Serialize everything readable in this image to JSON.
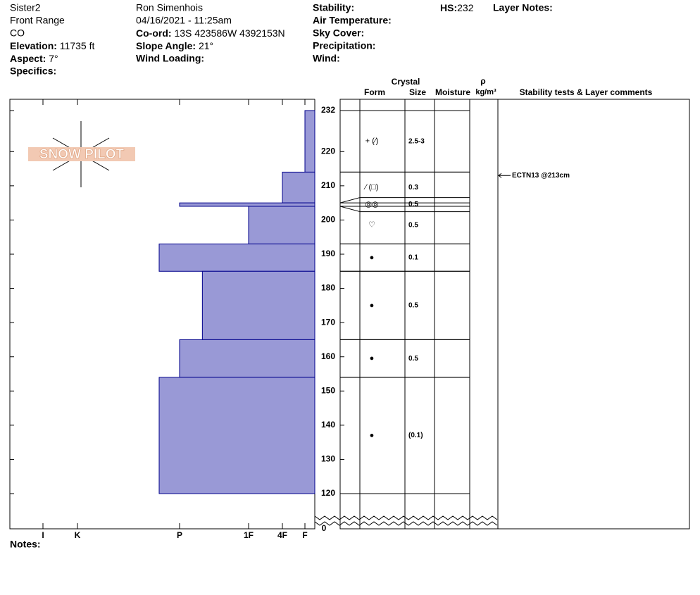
{
  "header": {
    "col1": [
      "Sister2",
      "Front Range",
      "CO"
    ],
    "elevation": {
      "label": "Elevation:",
      "value": "11735 ft"
    },
    "aspect": {
      "label": "Aspect:",
      "value": "7°"
    },
    "specifics": {
      "label": "Specifics:"
    },
    "observer": "Ron Simenhois",
    "date": "04/16/2021 - 11:25am",
    "coord": {
      "label": "Co-ord:",
      "value": "13S 423586W 4392153N"
    },
    "slope": {
      "label": "Slope Angle:",
      "value": "21°"
    },
    "wind_loading": {
      "label": "Wind Loading:"
    },
    "col3": [
      "Stability:",
      "Air Temperature:",
      "Sky Cover:",
      "Precipitation:",
      "Wind:"
    ],
    "hs": {
      "label": "HS:",
      "value": "232"
    },
    "layer_notes": "Layer Notes:"
  },
  "logo": "SNOW PILOT",
  "columns": {
    "crystal": "Crystal",
    "form": "Form",
    "size": "Size",
    "moisture": "Moisture",
    "rho": "ρ",
    "density_unit": "kg/m³",
    "comments": "Stability tests & Layer comments"
  },
  "notes": "Notes:",
  "chart_data": {
    "type": "snow-profile",
    "ylim": [
      120,
      232
    ],
    "yticks": [
      120,
      130,
      140,
      150,
      160,
      170,
      180,
      190,
      200,
      210,
      220,
      232
    ],
    "ybreak": 0,
    "xticks": [
      {
        "value": 1,
        "label": "F"
      },
      {
        "value": 2,
        "label": "4F"
      },
      {
        "value": 3,
        "label": "1F"
      },
      {
        "value": 4,
        "label": "P"
      },
      {
        "value": 5,
        "label": "K"
      },
      {
        "value": 6,
        "label": "I"
      }
    ],
    "color": "#9999d6",
    "layers": [
      {
        "top": 232,
        "bottom": 214,
        "hardness": 1,
        "form": "+ (⁄)",
        "size": "2.5-3"
      },
      {
        "top": 214,
        "bottom": 205,
        "hardness": 2,
        "form": "⁄ (□)",
        "size": "0.3"
      },
      {
        "top": 205,
        "bottom": 204,
        "hardness": 4,
        "form": "◎◎",
        "size": "0.5"
      },
      {
        "top": 204,
        "bottom": 193,
        "hardness": 3,
        "form": "♡",
        "size": "0.5"
      },
      {
        "top": 193,
        "bottom": 185,
        "hardness": 4.2,
        "form": "●",
        "size": "0.1"
      },
      {
        "top": 185,
        "bottom": 165,
        "hardness": 3.67,
        "form": "●",
        "size": "0.5"
      },
      {
        "top": 165,
        "bottom": 154,
        "hardness": 4,
        "form": "●",
        "size": "0.5"
      },
      {
        "top": 154,
        "bottom": 120,
        "hardness": 4.2,
        "form": "●",
        "size": "(0.1)"
      }
    ],
    "comments": [
      {
        "height": 213,
        "text": "ECTN13 @213cm"
      }
    ]
  }
}
